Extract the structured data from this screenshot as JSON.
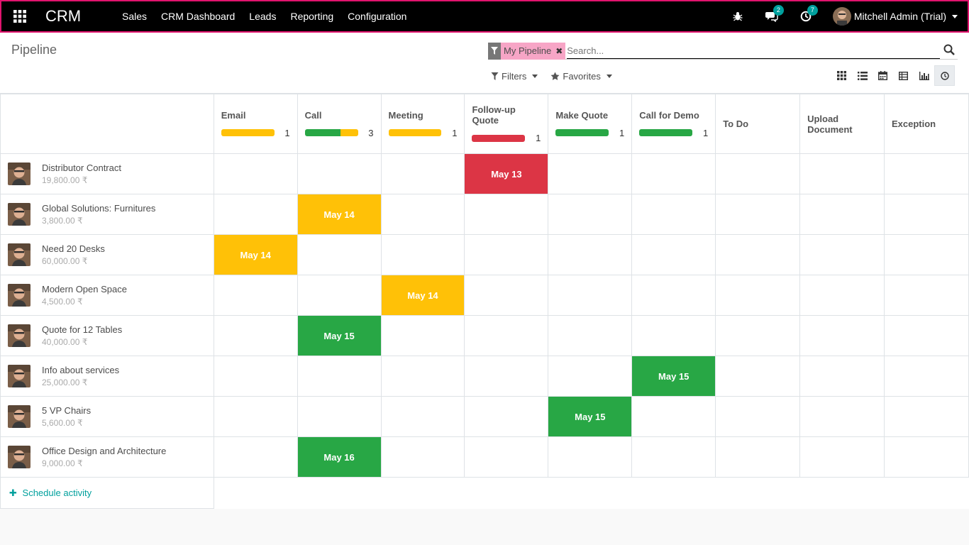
{
  "navbar": {
    "brand": "CRM",
    "menu": [
      "Sales",
      "CRM Dashboard",
      "Leads",
      "Reporting",
      "Configuration"
    ],
    "messages_count": "2",
    "activities_count": "7",
    "user_name": "Mitchell Admin (Trial)"
  },
  "control_panel": {
    "title": "Pipeline",
    "facet_value": "My Pipeline",
    "search_placeholder": "Search...",
    "filters_label": "Filters",
    "favorites_label": "Favorites"
  },
  "columns": [
    {
      "name": "Email",
      "count": "1",
      "segments": [
        {
          "color": "#ffc107",
          "value": 1
        }
      ]
    },
    {
      "name": "Call",
      "count": "3",
      "segments": [
        {
          "color": "#28a745",
          "value": 2
        },
        {
          "color": "#ffc107",
          "value": 1
        }
      ]
    },
    {
      "name": "Meeting",
      "count": "1",
      "segments": [
        {
          "color": "#ffc107",
          "value": 1
        }
      ]
    },
    {
      "name": "Follow-up Quote",
      "count": "1",
      "segments": [
        {
          "color": "#dc3545",
          "value": 1
        }
      ]
    },
    {
      "name": "Make Quote",
      "count": "1",
      "segments": [
        {
          "color": "#28a745",
          "value": 1
        }
      ]
    },
    {
      "name": "Call for Demo",
      "count": "1",
      "segments": [
        {
          "color": "#28a745",
          "value": 1
        }
      ]
    },
    {
      "name": "To Do",
      "count": "",
      "segments": []
    },
    {
      "name": "Upload Document",
      "count": "",
      "segments": []
    },
    {
      "name": "Exception",
      "count": "",
      "segments": []
    }
  ],
  "records": [
    {
      "name": "Distributor Contract",
      "amount": "19,800.00 ₹",
      "col": 3,
      "date": "May 13",
      "status": "red"
    },
    {
      "name": "Global Solutions: Furnitures",
      "amount": "3,800.00 ₹",
      "col": 1,
      "date": "May 14",
      "status": "orange"
    },
    {
      "name": "Need 20 Desks",
      "amount": "60,000.00 ₹",
      "col": 0,
      "date": "May 14",
      "status": "orange"
    },
    {
      "name": "Modern Open Space",
      "amount": "4,500.00 ₹",
      "col": 2,
      "date": "May 14",
      "status": "orange"
    },
    {
      "name": "Quote for 12 Tables",
      "amount": "40,000.00 ₹",
      "col": 1,
      "date": "May 15",
      "status": "green"
    },
    {
      "name": "Info about services",
      "amount": "25,000.00 ₹",
      "col": 5,
      "date": "May 15",
      "status": "green"
    },
    {
      "name": "5 VP Chairs",
      "amount": "5,600.00 ₹",
      "col": 4,
      "date": "May 15",
      "status": "green"
    },
    {
      "name": "Office Design and Architecture",
      "amount": "9,000.00 ₹",
      "col": 1,
      "date": "May 16",
      "status": "green"
    }
  ],
  "footer": {
    "schedule_label": "Schedule activity"
  },
  "colors": {
    "green": "#28a745",
    "orange": "#ffc107",
    "red": "#dc3545",
    "accent": "#00a09d",
    "navbar_border": "#e0146d"
  }
}
